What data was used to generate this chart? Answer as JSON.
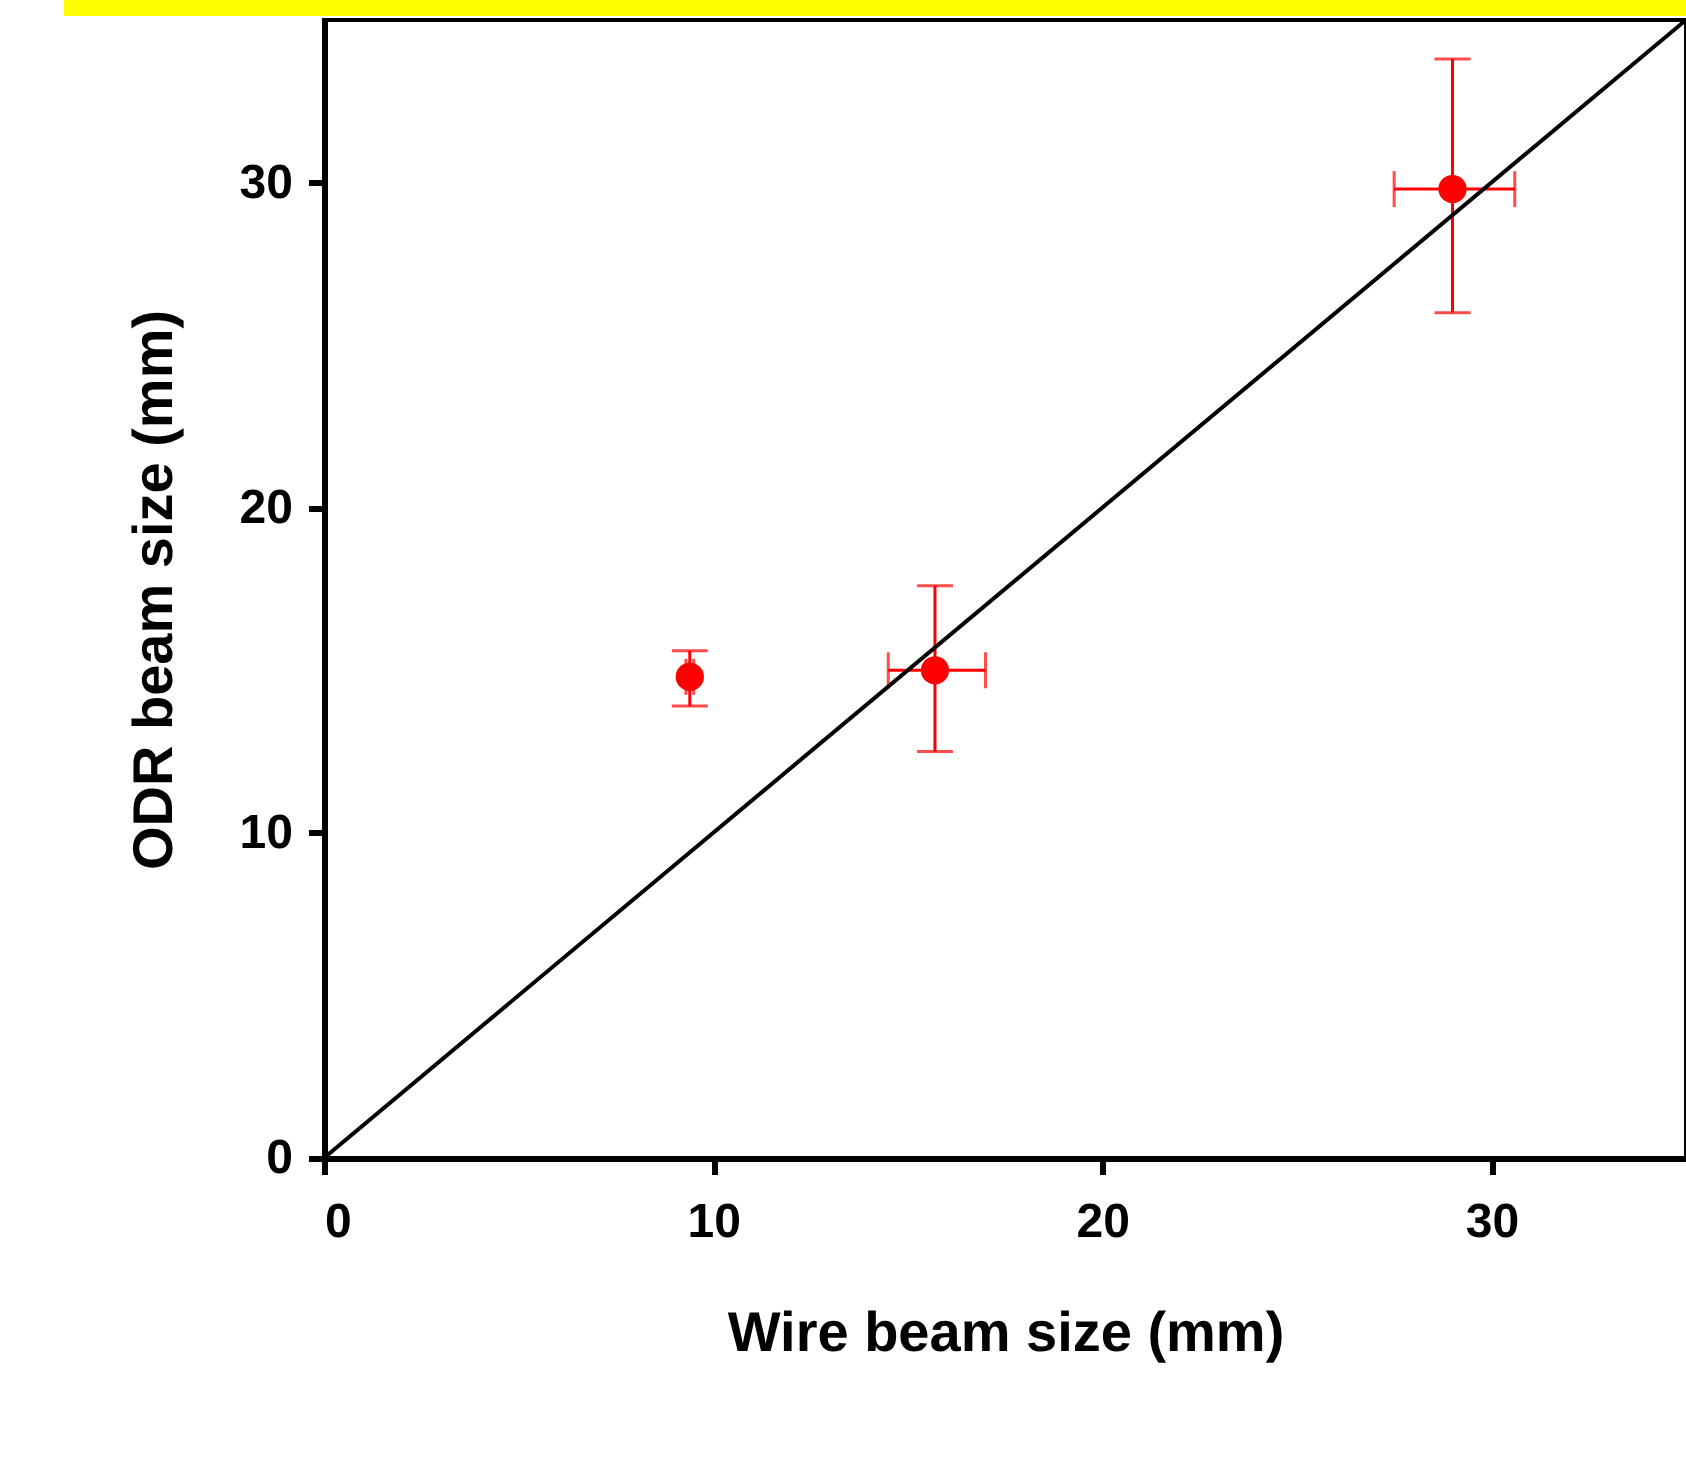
{
  "chart_data": {
    "type": "scatter",
    "xlabel": "Wire beam size (mm)",
    "ylabel": "ODR beam size (mm)",
    "xlim": [
      0,
      35
    ],
    "ylim": [
      0,
      35
    ],
    "xticks": [
      0,
      10,
      20,
      30
    ],
    "yticks": [
      0,
      10,
      20,
      30
    ],
    "grid": false,
    "marker": "circle",
    "series": [
      {
        "color": "#ff0000",
        "x": [
          9.4,
          15.7,
          29.0
        ],
        "values": [
          14.8,
          15.0,
          29.8
        ],
        "errors": [
          [
            13.9,
            15.6
          ],
          [
            12.5,
            17.6
          ],
          [
            26.0,
            33.8
          ]
        ],
        "xerrors": [
          [
            9.3,
            9.5
          ],
          [
            14.5,
            17.0
          ],
          [
            27.5,
            30.6
          ]
        ]
      },
      {
        "type": "line",
        "color": "#000000",
        "x": [
          0,
          35
        ],
        "values": [
          0,
          35
        ],
        "line_style": "solid",
        "marker": "none"
      }
    ]
  }
}
